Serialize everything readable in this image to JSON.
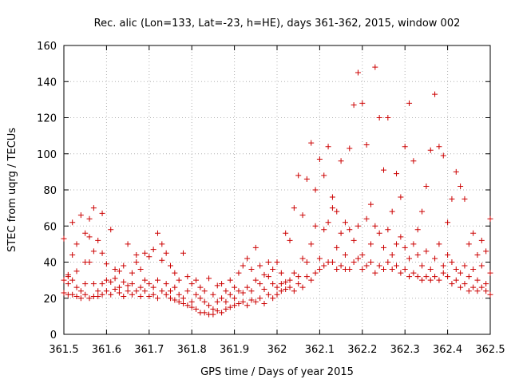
{
  "chart_data": {
    "type": "scatter",
    "title": "Rec. alic (Lon=133, Lat=-23, h=HE), days 361-362, 2015, window 002",
    "xlabel": "GPS time / Days of year 2015",
    "ylabel": "STEC from uqrg / TECUs",
    "xlim": [
      361.5,
      362.5
    ],
    "ylim": [
      0,
      160
    ],
    "xticks": [
      361.5,
      361.6,
      361.7,
      361.8,
      361.9,
      362.0,
      362.1,
      362.2,
      362.3,
      362.4,
      362.5
    ],
    "xtick_labels": [
      "361.5",
      "361.6",
      "361.7",
      "361.8",
      "361.9",
      "362",
      "362.1",
      "362.2",
      "362.3",
      "362.4",
      "362.5"
    ],
    "yticks": [
      0,
      20,
      40,
      60,
      80,
      100,
      120,
      140,
      160
    ],
    "ytick_labels": [
      "0",
      "20",
      "40",
      "60",
      "80",
      "100",
      "120",
      "140",
      "160"
    ],
    "marker": "+",
    "color": "#cc0000",
    "points": [
      [
        361.5,
        23
      ],
      [
        361.5,
        30
      ],
      [
        361.5,
        53
      ],
      [
        361.51,
        22
      ],
      [
        361.51,
        28
      ],
      [
        361.51,
        32
      ],
      [
        361.51,
        33
      ],
      [
        361.52,
        44
      ],
      [
        361.52,
        62
      ],
      [
        361.52,
        22
      ],
      [
        361.52,
        30
      ],
      [
        361.53,
        21
      ],
      [
        361.53,
        26
      ],
      [
        361.53,
        35
      ],
      [
        361.53,
        50
      ],
      [
        361.54,
        24
      ],
      [
        361.54,
        66
      ],
      [
        361.54,
        20
      ],
      [
        361.55,
        40
      ],
      [
        361.55,
        56
      ],
      [
        361.55,
        28
      ],
      [
        361.55,
        22
      ],
      [
        361.56,
        20
      ],
      [
        361.56,
        40
      ],
      [
        361.56,
        54
      ],
      [
        361.56,
        64
      ],
      [
        361.57,
        21
      ],
      [
        361.57,
        28
      ],
      [
        361.57,
        46
      ],
      [
        361.57,
        70
      ],
      [
        361.58,
        21
      ],
      [
        361.58,
        24
      ],
      [
        361.58,
        52
      ],
      [
        361.59,
        22
      ],
      [
        361.59,
        28
      ],
      [
        361.59,
        45
      ],
      [
        361.59,
        67
      ],
      [
        361.6,
        24
      ],
      [
        361.6,
        30
      ],
      [
        361.6,
        39
      ],
      [
        361.61,
        22
      ],
      [
        361.61,
        29
      ],
      [
        361.61,
        58
      ],
      [
        361.62,
        25
      ],
      [
        361.62,
        31
      ],
      [
        361.62,
        36
      ],
      [
        361.63,
        23
      ],
      [
        361.63,
        26
      ],
      [
        361.63,
        35
      ],
      [
        361.64,
        21
      ],
      [
        361.64,
        29
      ],
      [
        361.64,
        38
      ],
      [
        361.65,
        24
      ],
      [
        361.65,
        27
      ],
      [
        361.65,
        50
      ],
      [
        361.66,
        22
      ],
      [
        361.66,
        28
      ],
      [
        361.66,
        34
      ],
      [
        361.67,
        24
      ],
      [
        361.67,
        40
      ],
      [
        361.67,
        44
      ],
      [
        361.68,
        21
      ],
      [
        361.68,
        26
      ],
      [
        361.68,
        36
      ],
      [
        361.69,
        24
      ],
      [
        361.69,
        30
      ],
      [
        361.69,
        45
      ],
      [
        361.7,
        21
      ],
      [
        361.7,
        28
      ],
      [
        361.7,
        43
      ],
      [
        361.71,
        22
      ],
      [
        361.71,
        26
      ],
      [
        361.71,
        47
      ],
      [
        361.72,
        20
      ],
      [
        361.72,
        30
      ],
      [
        361.72,
        56
      ],
      [
        361.73,
        24
      ],
      [
        361.73,
        41
      ],
      [
        361.73,
        50
      ],
      [
        361.74,
        22
      ],
      [
        361.74,
        28
      ],
      [
        361.74,
        45
      ],
      [
        361.75,
        20
      ],
      [
        361.75,
        24
      ],
      [
        361.75,
        38
      ],
      [
        361.76,
        19
      ],
      [
        361.76,
        26
      ],
      [
        361.76,
        34
      ],
      [
        361.77,
        18
      ],
      [
        361.77,
        22
      ],
      [
        361.77,
        30
      ],
      [
        361.78,
        17
      ],
      [
        361.78,
        20
      ],
      [
        361.78,
        45
      ],
      [
        361.79,
        16
      ],
      [
        361.79,
        24
      ],
      [
        361.79,
        32
      ],
      [
        361.8,
        15
      ],
      [
        361.8,
        18
      ],
      [
        361.8,
        28
      ],
      [
        361.81,
        14
      ],
      [
        361.81,
        22
      ],
      [
        361.81,
        30
      ],
      [
        361.82,
        12
      ],
      [
        361.82,
        20
      ],
      [
        361.82,
        26
      ],
      [
        361.83,
        12
      ],
      [
        361.83,
        18
      ],
      [
        361.83,
        24
      ],
      [
        361.84,
        11
      ],
      [
        361.84,
        16
      ],
      [
        361.84,
        31
      ],
      [
        361.85,
        11
      ],
      [
        361.85,
        14
      ],
      [
        361.85,
        22
      ],
      [
        361.86,
        13
      ],
      [
        361.86,
        18
      ],
      [
        361.86,
        27
      ],
      [
        361.87,
        12
      ],
      [
        361.87,
        20
      ],
      [
        361.87,
        28
      ],
      [
        361.88,
        14
      ],
      [
        361.88,
        18
      ],
      [
        361.88,
        24
      ],
      [
        361.89,
        15
      ],
      [
        361.89,
        22
      ],
      [
        361.89,
        30
      ],
      [
        361.9,
        16
      ],
      [
        361.9,
        20
      ],
      [
        361.9,
        26
      ],
      [
        361.91,
        17
      ],
      [
        361.91,
        24
      ],
      [
        361.91,
        34
      ],
      [
        361.92,
        18
      ],
      [
        361.92,
        23
      ],
      [
        361.92,
        38
      ],
      [
        361.93,
        16
      ],
      [
        361.93,
        26
      ],
      [
        361.93,
        42
      ],
      [
        361.94,
        19
      ],
      [
        361.94,
        24
      ],
      [
        361.94,
        36
      ],
      [
        361.95,
        18
      ],
      [
        361.95,
        30
      ],
      [
        361.95,
        48
      ],
      [
        361.96,
        20
      ],
      [
        361.96,
        28
      ],
      [
        361.96,
        38
      ],
      [
        361.97,
        17
      ],
      [
        361.97,
        25
      ],
      [
        361.97,
        33
      ],
      [
        361.98,
        22
      ],
      [
        361.98,
        32
      ],
      [
        361.98,
        40
      ],
      [
        361.99,
        20
      ],
      [
        361.99,
        28
      ],
      [
        361.99,
        36
      ],
      [
        362.0,
        22
      ],
      [
        362.0,
        26
      ],
      [
        362.0,
        40
      ],
      [
        362.01,
        24
      ],
      [
        362.01,
        28
      ],
      [
        362.01,
        34
      ],
      [
        362.02,
        25
      ],
      [
        362.02,
        29
      ],
      [
        362.02,
        56
      ],
      [
        362.03,
        26
      ],
      [
        362.03,
        30
      ],
      [
        362.03,
        52
      ],
      [
        362.04,
        24
      ],
      [
        362.04,
        34
      ],
      [
        362.04,
        70
      ],
      [
        362.05,
        28
      ],
      [
        362.05,
        32
      ],
      [
        362.05,
        88
      ],
      [
        362.06,
        26
      ],
      [
        362.06,
        42
      ],
      [
        362.06,
        66
      ],
      [
        362.07,
        32
      ],
      [
        362.07,
        40
      ],
      [
        362.07,
        86
      ],
      [
        362.08,
        30
      ],
      [
        362.08,
        50
      ],
      [
        362.08,
        106
      ],
      [
        362.09,
        34
      ],
      [
        362.09,
        60
      ],
      [
        362.09,
        80
      ],
      [
        362.1,
        36
      ],
      [
        362.1,
        42
      ],
      [
        362.1,
        97
      ],
      [
        362.11,
        38
      ],
      [
        362.11,
        58
      ],
      [
        362.11,
        88
      ],
      [
        362.12,
        40
      ],
      [
        362.12,
        62
      ],
      [
        362.12,
        104
      ],
      [
        362.13,
        40
      ],
      [
        362.13,
        70
      ],
      [
        362.13,
        76
      ],
      [
        362.14,
        36
      ],
      [
        362.14,
        48
      ],
      [
        362.14,
        68
      ],
      [
        362.15,
        38
      ],
      [
        362.15,
        56
      ],
      [
        362.15,
        96
      ],
      [
        362.16,
        36
      ],
      [
        362.16,
        44
      ],
      [
        362.16,
        62
      ],
      [
        362.17,
        36
      ],
      [
        362.17,
        58
      ],
      [
        362.17,
        103
      ],
      [
        362.18,
        40
      ],
      [
        362.18,
        52
      ],
      [
        362.18,
        127
      ],
      [
        362.19,
        42
      ],
      [
        362.19,
        60
      ],
      [
        362.19,
        145
      ],
      [
        362.2,
        36
      ],
      [
        362.2,
        44
      ],
      [
        362.2,
        128
      ],
      [
        362.21,
        38
      ],
      [
        362.21,
        64
      ],
      [
        362.21,
        105
      ],
      [
        362.22,
        40
      ],
      [
        362.22,
        50
      ],
      [
        362.22,
        72
      ],
      [
        362.23,
        34
      ],
      [
        362.23,
        60
      ],
      [
        362.23,
        148
      ],
      [
        362.24,
        38
      ],
      [
        362.24,
        56
      ],
      [
        362.24,
        120
      ],
      [
        362.25,
        36
      ],
      [
        362.25,
        48
      ],
      [
        362.25,
        91
      ],
      [
        362.26,
        40
      ],
      [
        362.26,
        58
      ],
      [
        362.26,
        120
      ],
      [
        362.27,
        36
      ],
      [
        362.27,
        44
      ],
      [
        362.27,
        68
      ],
      [
        362.28,
        38
      ],
      [
        362.28,
        50
      ],
      [
        362.28,
        89
      ],
      [
        362.29,
        34
      ],
      [
        362.29,
        54
      ],
      [
        362.29,
        76
      ],
      [
        362.3,
        36
      ],
      [
        362.3,
        48
      ],
      [
        362.3,
        104
      ],
      [
        362.31,
        32
      ],
      [
        362.31,
        42
      ],
      [
        362.31,
        128
      ],
      [
        362.32,
        34
      ],
      [
        362.32,
        50
      ],
      [
        362.32,
        96
      ],
      [
        362.33,
        32
      ],
      [
        362.33,
        44
      ],
      [
        362.33,
        58
      ],
      [
        362.34,
        30
      ],
      [
        362.34,
        38
      ],
      [
        362.34,
        68
      ],
      [
        362.35,
        32
      ],
      [
        362.35,
        46
      ],
      [
        362.35,
        82
      ],
      [
        362.36,
        30
      ],
      [
        362.36,
        36
      ],
      [
        362.36,
        102
      ],
      [
        362.37,
        32
      ],
      [
        362.37,
        42
      ],
      [
        362.37,
        133
      ],
      [
        362.38,
        30
      ],
      [
        362.38,
        50
      ],
      [
        362.38,
        104
      ],
      [
        362.39,
        34
      ],
      [
        362.39,
        38
      ],
      [
        362.39,
        99
      ],
      [
        362.4,
        32
      ],
      [
        362.4,
        44
      ],
      [
        362.4,
        62
      ],
      [
        362.41,
        28
      ],
      [
        362.41,
        40
      ],
      [
        362.41,
        75
      ],
      [
        362.42,
        30
      ],
      [
        362.42,
        36
      ],
      [
        362.42,
        90
      ],
      [
        362.43,
        26
      ],
      [
        362.43,
        34
      ],
      [
        362.43,
        82
      ],
      [
        362.44,
        28
      ],
      [
        362.44,
        38
      ],
      [
        362.44,
        75
      ],
      [
        362.45,
        24
      ],
      [
        362.45,
        32
      ],
      [
        362.45,
        50
      ],
      [
        362.46,
        26
      ],
      [
        362.46,
        36
      ],
      [
        362.46,
        56
      ],
      [
        362.47,
        24
      ],
      [
        362.47,
        30
      ],
      [
        362.47,
        44
      ],
      [
        362.48,
        26
      ],
      [
        362.48,
        38
      ],
      [
        362.48,
        52
      ],
      [
        362.49,
        24
      ],
      [
        362.49,
        28
      ],
      [
        362.49,
        46
      ],
      [
        362.5,
        22
      ],
      [
        362.5,
        34
      ],
      [
        362.5,
        64
      ]
    ]
  }
}
